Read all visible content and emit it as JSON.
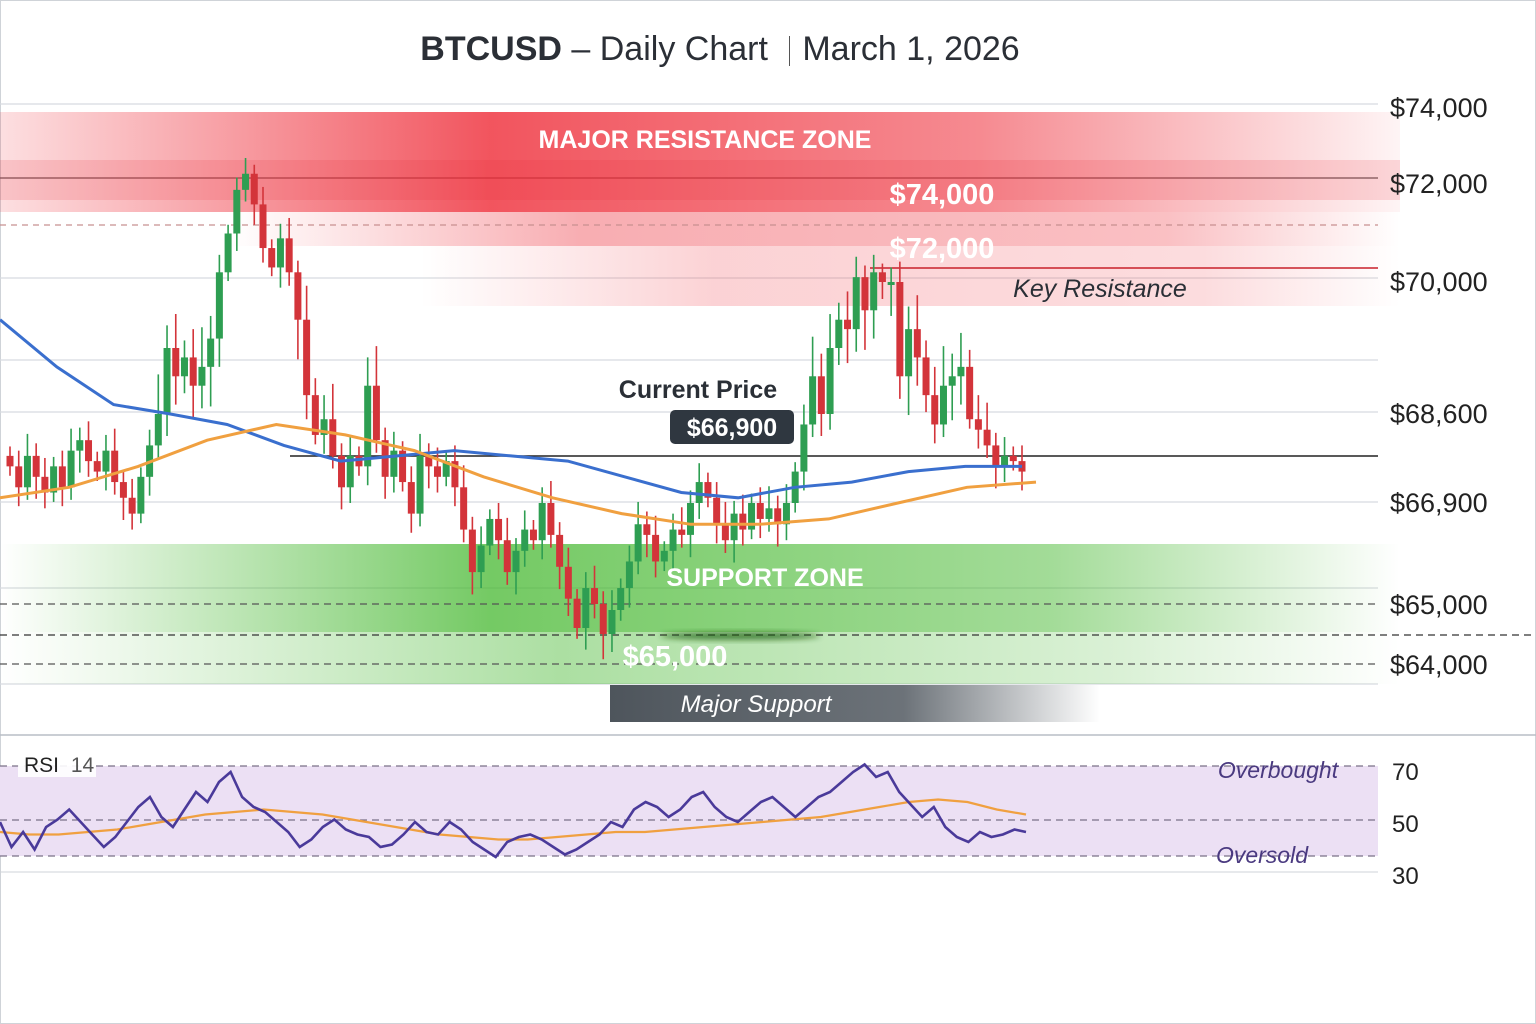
{
  "title": {
    "symbol": "BTCUSD",
    "subtitle": "– Daily Chart",
    "date": "March 1, 2026"
  },
  "colors": {
    "bull": "#2e9e52",
    "bear": "#d3343a",
    "ma_fast": "#3a6fce",
    "ma_slow": "#f0a040",
    "rsi_line": "#4a3a9a",
    "rsi_ma": "#f0a040",
    "resistance": "#ee2a36",
    "support": "#46b830",
    "rsi_band": "#ece0f4"
  },
  "annotations": {
    "resistance_zone": "MAJOR RESISTANCE ZONE",
    "resistance_upper": "$74,000",
    "resistance_lower": "$72,000",
    "key_resistance": "Key Resistance",
    "current_price_title": "Current Price",
    "current_price": "$66,900",
    "support_zone": "SUPPORT ZONE",
    "support_price": "$65,000",
    "major_support": "Major Support",
    "overbought": "Overbought",
    "oversold": "Oversold",
    "rsi_label": "RSI",
    "rsi_period": "14"
  },
  "chart_data": [
    {
      "type": "candlestick",
      "title": "BTCUSD – Daily Chart",
      "y_tick_labels": [
        "$74,000",
        "$72,000",
        "$70,000",
        "$68,600",
        "$66,900",
        "$65,000",
        "$64,000"
      ],
      "current_price": 66900,
      "resistance_zone": [
        72000,
        74000
      ],
      "key_resistance": 72000,
      "support_zone": 65000,
      "major_support": 65000,
      "series": [
        {
          "name": "price",
          "closes": [
            67.6,
            67.2,
            67.8,
            67.4,
            67.1,
            67.6,
            67.2,
            67.9,
            68.1,
            67.7,
            67.5,
            67.9,
            67.3,
            67.0,
            66.7,
            67.4,
            68.0,
            68.6,
            69.3,
            69.0,
            69.2,
            68.9,
            69.1,
            69.4,
            70.2,
            71.0,
            71.9,
            72.3,
            71.6,
            70.7,
            70.3,
            70.9,
            70.2,
            69.6,
            68.8,
            68.2,
            68.5,
            67.8,
            67.2,
            67.8,
            67.6,
            68.9,
            68.1,
            67.4,
            67.9,
            67.3,
            66.7,
            67.8,
            67.6,
            67.4,
            67.7,
            67.2,
            66.4,
            65.6,
            66.1,
            66.6,
            66.2,
            65.6,
            66.0,
            66.4,
            66.2,
            66.9,
            66.3,
            65.7,
            65.1,
            64.6,
            65.3,
            65.0,
            64.5,
            64.9,
            65.3,
            65.8,
            66.5,
            66.3,
            65.8,
            66.0,
            66.4,
            66.3,
            66.9,
            67.3,
            67.0,
            66.5,
            66.2,
            66.7,
            66.4,
            66.9,
            66.6,
            66.8,
            66.5,
            66.9,
            67.5,
            68.4,
            69.0,
            68.6,
            69.3,
            69.6,
            69.5,
            70.1,
            69.7,
            70.2,
            70.0,
            70.0,
            69.0,
            69.5,
            69.2,
            68.8,
            68.4,
            68.9,
            69.0,
            69.1,
            68.5,
            68.3,
            68.0,
            67.6,
            67.8,
            67.7,
            67.5
          ]
        }
      ],
      "moving_averages": [
        {
          "color": "blue",
          "values": [
            69.6,
            69.1,
            68.7,
            68.6,
            68.4,
            68.0,
            67.7,
            67.8,
            67.9,
            67.8,
            67.7,
            67.4,
            67.1,
            67.0,
            67.2,
            67.3,
            67.5,
            67.6,
            67.6
          ]
        },
        {
          "color": "orange",
          "values": [
            67.0,
            67.2,
            67.6,
            68.1,
            68.4,
            68.2,
            67.9,
            67.4,
            67.0,
            66.7,
            66.5,
            66.5,
            66.6,
            66.9,
            67.2,
            67.3
          ]
        }
      ]
    },
    {
      "type": "line",
      "title": "RSI 14",
      "y_tick_labels": [
        "70",
        "50",
        "30"
      ],
      "ylim": [
        30,
        70
      ],
      "overbought": 70,
      "oversold": 37,
      "series": [
        {
          "name": "RSI",
          "values": [
            50,
            40,
            46,
            39,
            48,
            51,
            55,
            50,
            45,
            40,
            44,
            50,
            56,
            60,
            52,
            48,
            55,
            62,
            58,
            66,
            70,
            60,
            56,
            54,
            50,
            46,
            40,
            43,
            48,
            51,
            47,
            45,
            44,
            40,
            41,
            45,
            50,
            46,
            45,
            50,
            47,
            42,
            39,
            36,
            42,
            44,
            45,
            43,
            40,
            37,
            39,
            42,
            45,
            50,
            48,
            55,
            58,
            56,
            52,
            55,
            60,
            62,
            56,
            52,
            50,
            54,
            58,
            60,
            56,
            52,
            56,
            60,
            62,
            66,
            70,
            73,
            68,
            70,
            62,
            57,
            52,
            56,
            48,
            44,
            42,
            46,
            44,
            45,
            47,
            46
          ]
        },
        {
          "name": "RSI MA",
          "values": [
            46,
            45,
            45,
            46,
            47,
            49,
            51,
            53,
            54,
            55,
            54,
            53,
            51,
            49,
            47,
            45,
            44,
            43,
            43,
            44,
            45,
            46,
            46,
            47,
            48,
            49,
            50,
            51,
            52,
            54,
            56,
            58,
            59,
            58,
            55,
            53
          ]
        }
      ]
    }
  ]
}
